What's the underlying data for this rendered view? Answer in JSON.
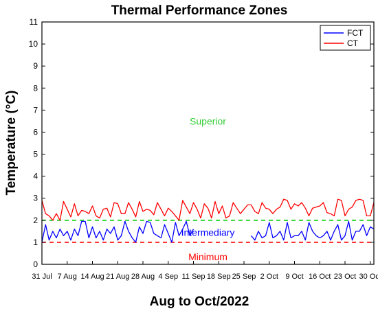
{
  "chart_data": {
    "type": "line",
    "title": "Thermal Performance Zones",
    "xlabel": "Aug to Oct/2022",
    "ylabel": "Temperature (°C)",
    "ylim": [
      0,
      11
    ],
    "xlim": [
      "2022-07-31",
      "2022-10-31"
    ],
    "yticks": [
      "0",
      "1",
      "2",
      "3",
      "4",
      "5",
      "6",
      "7",
      "8",
      "9",
      "10",
      "11"
    ],
    "xticks": [
      "31 Jul",
      "7 Aug",
      "14 Aug",
      "21 Aug",
      "28 Aug",
      "4 Sep",
      "11 Sep",
      "18 Sep",
      "25 Sep",
      "2 Oct",
      "9 Oct",
      "16 Oct",
      "23 Oct",
      "30 Oct"
    ],
    "grid": false,
    "legend_position": "top-right",
    "x": [
      "2022-07-31",
      "2022-08-01",
      "2022-08-02",
      "2022-08-03",
      "2022-08-04",
      "2022-08-05",
      "2022-08-06",
      "2022-08-07",
      "2022-08-08",
      "2022-08-09",
      "2022-08-10",
      "2022-08-11",
      "2022-08-12",
      "2022-08-13",
      "2022-08-14",
      "2022-08-15",
      "2022-08-16",
      "2022-08-17",
      "2022-08-18",
      "2022-08-19",
      "2022-08-20",
      "2022-08-21",
      "2022-08-22",
      "2022-08-23",
      "2022-08-24",
      "2022-08-25",
      "2022-08-26",
      "2022-08-27",
      "2022-08-28",
      "2022-08-29",
      "2022-08-30",
      "2022-08-31",
      "2022-09-01",
      "2022-09-02",
      "2022-09-03",
      "2022-09-04",
      "2022-09-05",
      "2022-09-06",
      "2022-09-07",
      "2022-09-08",
      "2022-09-09",
      "2022-09-10",
      "2022-09-11",
      "2022-09-12",
      "2022-09-13",
      "2022-09-14",
      "2022-09-15",
      "2022-09-16",
      "2022-09-17",
      "2022-09-18",
      "2022-09-19",
      "2022-09-20",
      "2022-09-21",
      "2022-09-22",
      "2022-09-23",
      "2022-09-24",
      "2022-09-25",
      "2022-09-26",
      "2022-09-27",
      "2022-09-28",
      "2022-09-29",
      "2022-09-30",
      "2022-10-01",
      "2022-10-02",
      "2022-10-03",
      "2022-10-04",
      "2022-10-05",
      "2022-10-06",
      "2022-10-07",
      "2022-10-08",
      "2022-10-09",
      "2022-10-10",
      "2022-10-11",
      "2022-10-12",
      "2022-10-13",
      "2022-10-14",
      "2022-10-15",
      "2022-10-16",
      "2022-10-17",
      "2022-10-18",
      "2022-10-19",
      "2022-10-20",
      "2022-10-21",
      "2022-10-22",
      "2022-10-23",
      "2022-10-24",
      "2022-10-25",
      "2022-10-26",
      "2022-10-27",
      "2022-10-28",
      "2022-10-29",
      "2022-10-30",
      "2022-10-31"
    ],
    "series": [
      {
        "name": "FCT",
        "color": "#0000ff",
        "values": [
          1.0,
          1.8,
          1.1,
          1.5,
          1.2,
          1.6,
          1.3,
          1.5,
          1.1,
          1.6,
          1.3,
          1.95,
          1.95,
          1.2,
          1.7,
          1.2,
          1.5,
          1.1,
          1.6,
          1.4,
          1.7,
          1.1,
          1.3,
          1.95,
          1.5,
          1.2,
          1.0,
          1.7,
          1.4,
          1.95,
          1.9,
          1.4,
          1.3,
          1.2,
          1.8,
          1.4,
          1.0,
          1.9,
          1.3,
          1.6,
          1.95,
          1.3,
          1.6,
          null,
          null,
          null,
          null,
          null,
          null,
          null,
          null,
          null,
          null,
          null,
          null,
          null,
          null,
          null,
          1.3,
          1.1,
          1.5,
          1.2,
          1.3,
          1.9,
          1.2,
          1.3,
          1.5,
          1.1,
          1.9,
          1.2,
          1.3,
          1.3,
          1.5,
          1.1,
          1.9,
          1.5,
          1.3,
          1.2,
          1.3,
          1.5,
          1.1,
          1.5,
          1.8,
          1.1,
          1.3,
          1.95,
          1.1,
          1.5,
          1.5,
          1.8,
          1.3,
          1.7,
          1.6
        ]
      },
      {
        "name": "CT",
        "color": "#ff0000",
        "values": [
          2.9,
          2.3,
          2.2,
          2.0,
          2.3,
          2.0,
          2.85,
          2.5,
          2.15,
          2.75,
          2.2,
          2.45,
          2.4,
          2.3,
          2.65,
          2.2,
          2.1,
          2.5,
          2.55,
          2.15,
          2.8,
          2.75,
          2.3,
          2.3,
          2.8,
          2.5,
          2.15,
          2.85,
          2.4,
          2.5,
          2.45,
          2.25,
          2.8,
          2.5,
          2.2,
          2.55,
          2.4,
          2.2,
          2.0,
          2.9,
          2.6,
          2.3,
          2.8,
          2.5,
          2.1,
          2.75,
          2.55,
          2.1,
          2.85,
          2.3,
          2.65,
          2.1,
          2.2,
          2.8,
          2.55,
          2.3,
          2.5,
          2.7,
          2.7,
          2.4,
          2.3,
          2.8,
          2.55,
          2.5,
          2.3,
          2.5,
          2.6,
          2.95,
          2.9,
          2.5,
          2.75,
          2.65,
          2.8,
          2.55,
          2.2,
          2.55,
          2.6,
          2.65,
          2.8,
          2.35,
          2.3,
          2.2,
          2.95,
          2.9,
          2.2,
          2.5,
          2.6,
          2.9,
          2.95,
          2.9,
          2.2,
          2.2,
          2.8
        ]
      }
    ],
    "thresholds": [
      {
        "value": 2,
        "color": "#00cc00",
        "style": "dashed"
      },
      {
        "value": 1,
        "color": "#ff0000",
        "style": "dashed"
      }
    ],
    "zone_labels": [
      {
        "text": "Superior",
        "x": "2022-09-15",
        "y": 6.5,
        "color": "#33cc33"
      },
      {
        "text": "Intermediary",
        "x": "2022-09-15",
        "y": 1.45,
        "color": "#0000ff"
      },
      {
        "text": "Minimum",
        "x": "2022-09-15",
        "y": 0.35,
        "color": "#ff0000"
      }
    ]
  }
}
